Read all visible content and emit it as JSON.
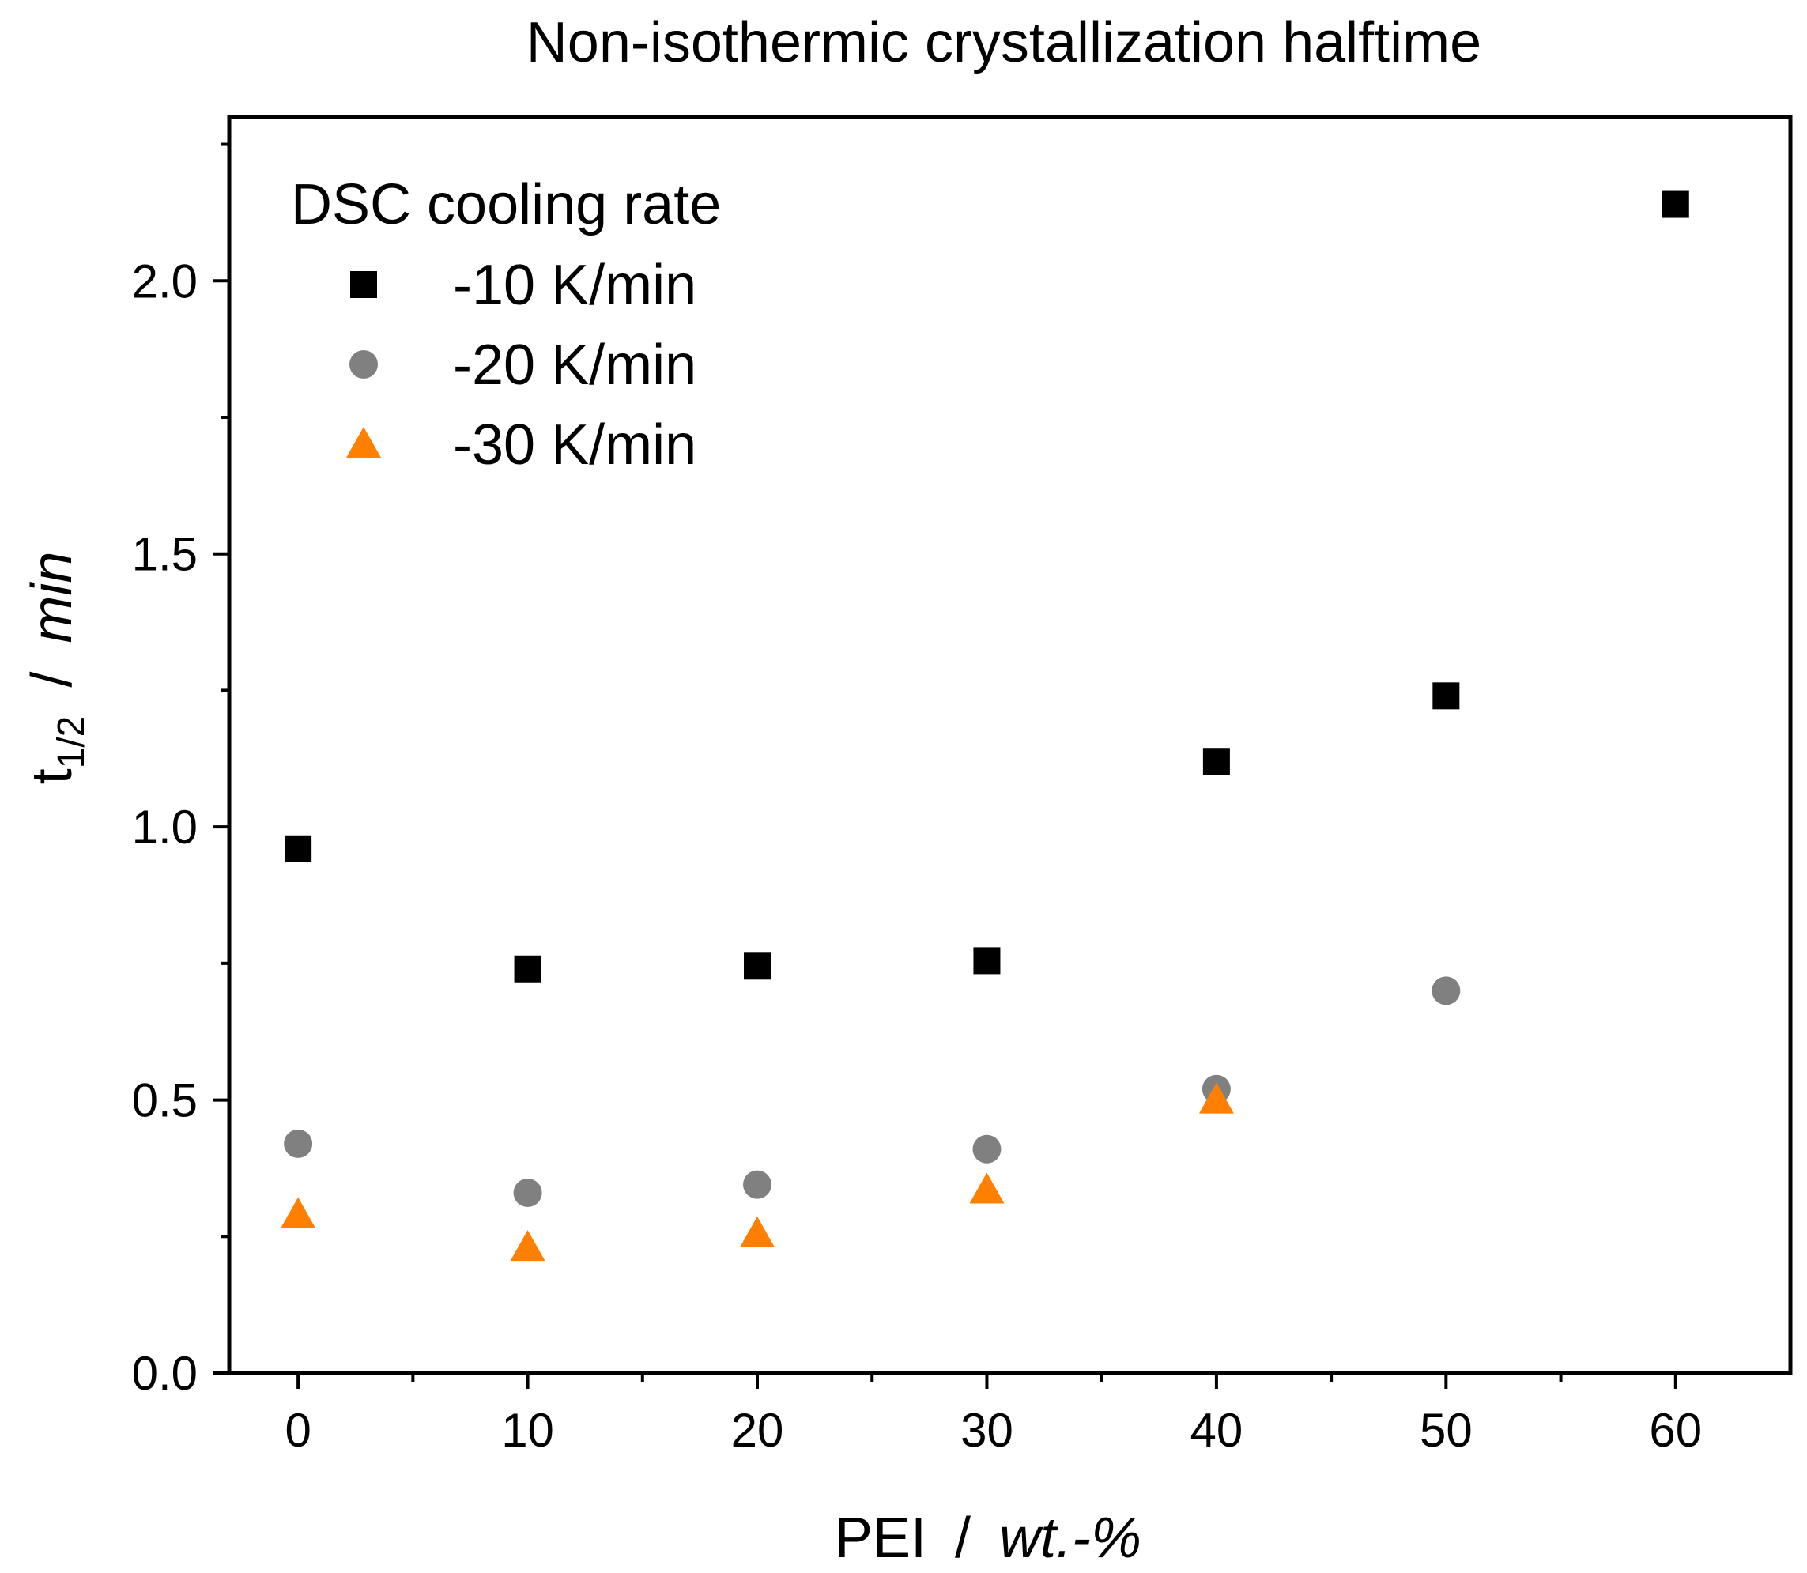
{
  "chart_data": {
    "type": "scatter",
    "title": "Non-isothermic crystallization halftime",
    "xlabel": {
      "name": "PEI",
      "separator": "/",
      "unit": "wt.-%"
    },
    "ylabel": {
      "symbol": "t",
      "subscript": "1/2",
      "separator": "/",
      "unit": "min"
    },
    "xlim": [
      -3,
      65
    ],
    "ylim": [
      0,
      2.3
    ],
    "xticks": [
      0,
      10,
      20,
      30,
      40,
      50,
      60
    ],
    "xtick_labels": [
      "0",
      "10",
      "20",
      "30",
      "40",
      "50",
      "60"
    ],
    "yticks": [
      0.0,
      0.5,
      1.0,
      1.5,
      2.0
    ],
    "ytick_labels": [
      "0.0",
      "0.5",
      "1.0",
      "1.5",
      "2.0"
    ],
    "x_minor_ticks": [
      5,
      15,
      25,
      35,
      45,
      55
    ],
    "y_minor_ticks": [
      0.25,
      0.75,
      1.25,
      1.75,
      2.25
    ],
    "grid": false,
    "legend": {
      "title": "DSC cooling rate",
      "placement": "top-left"
    },
    "series": [
      {
        "name": "-10 K/min",
        "marker": "square",
        "color": "#000000",
        "x": [
          0,
          10,
          20,
          30,
          40,
          50,
          60
        ],
        "y": [
          0.96,
          0.74,
          0.745,
          0.755,
          1.12,
          1.24,
          2.14
        ]
      },
      {
        "name": "-20 K/min",
        "marker": "circle",
        "color": "#808080",
        "x": [
          0,
          10,
          20,
          30,
          40,
          50
        ],
        "y": [
          0.42,
          0.33,
          0.345,
          0.41,
          0.52,
          0.7
        ]
      },
      {
        "name": "-30 K/min",
        "marker": "triangle",
        "color": "#FF8000",
        "x": [
          0,
          10,
          20,
          30,
          40
        ],
        "y": [
          0.29,
          0.23,
          0.255,
          0.335,
          0.5
        ]
      }
    ]
  }
}
